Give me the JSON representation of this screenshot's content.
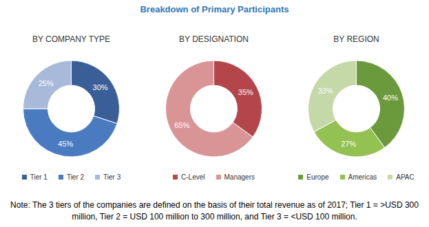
{
  "title": "Breakdown of Primary Participants",
  "note": "Note: The 3 tiers of the companies are defined on the basis of their total revenue as of 2017; Tier 1 = >USD 300 million, Tier 2 = USD 100 million to 300 million, and Tier 3 = <USD 100 million.",
  "chart_data": [
    {
      "type": "pie",
      "title": "BY COMPANY TYPE",
      "categories": [
        "Tier 1",
        "Tier 2",
        "Tier 3"
      ],
      "values": [
        30,
        45,
        25
      ],
      "value_labels": [
        "30%",
        "45%",
        "25%"
      ],
      "colors": [
        "#3a5f98",
        "#4a7bc0",
        "#a9b9d9"
      ],
      "data_labels": true,
      "legend": "bottom"
    },
    {
      "type": "pie",
      "title": "BY DESIGNATION",
      "categories": [
        "C-Level",
        "Managers"
      ],
      "values": [
        35,
        65
      ],
      "value_labels": [
        "35%",
        "65%"
      ],
      "colors": [
        "#b4454b",
        "#d99496"
      ],
      "data_labels": true,
      "legend": "bottom"
    },
    {
      "type": "pie",
      "title": "BY REGION",
      "categories": [
        "Europe",
        "Americas",
        "APAC"
      ],
      "values": [
        40,
        27,
        33
      ],
      "value_labels": [
        "40%",
        "27%",
        "33%"
      ],
      "colors": [
        "#6b9a3c",
        "#93c152",
        "#c4d9a7"
      ],
      "data_labels": true,
      "legend": "bottom"
    }
  ]
}
